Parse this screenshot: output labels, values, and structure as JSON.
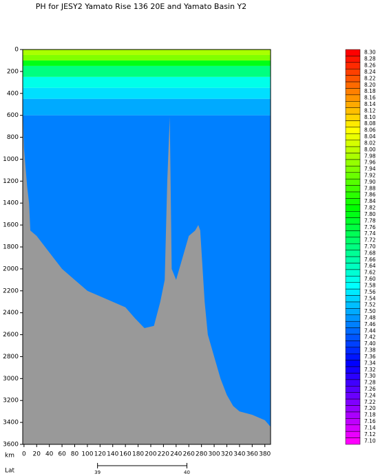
{
  "chart_data": {
    "type": "section",
    "title": "PH for JESY2 Yamato Rise 136 20E and Yamato Basin Y2",
    "x_label": "km",
    "xlim": [
      -2,
      389
    ],
    "xticks": [
      0,
      20,
      40,
      60,
      80,
      100,
      120,
      140,
      160,
      180,
      200,
      220,
      240,
      260,
      280,
      300,
      320,
      340,
      360,
      380
    ],
    "ylim": [
      0,
      3600
    ],
    "yticks": [
      0,
      200,
      400,
      600,
      800,
      1000,
      1200,
      1400,
      1600,
      1800,
      2000,
      2200,
      2400,
      2600,
      2800,
      3000,
      3200,
      3400,
      3600
    ],
    "lat_axis": {
      "label": "Lat",
      "ticks": [
        39,
        40
      ],
      "tick_km": [
        116,
        257
      ]
    },
    "profile": {
      "depths": [
        0,
        50,
        100,
        150,
        250,
        350,
        450,
        600,
        3600
      ],
      "values": [
        7.98,
        7.94,
        7.8,
        7.7,
        7.6,
        7.55,
        7.5,
        7.46
      ]
    },
    "bottom": {
      "x": [
        -2,
        0,
        5,
        8,
        10,
        20,
        40,
        60,
        80,
        100,
        120,
        140,
        160,
        175,
        190,
        205,
        215,
        222,
        226,
        230,
        233,
        240,
        250,
        260,
        270,
        275,
        278,
        285,
        290,
        300,
        310,
        320,
        330,
        340,
        360,
        380,
        389
      ],
      "depths": [
        500,
        900,
        1250,
        1400,
        1650,
        1700,
        1850,
        2000,
        2100,
        2200,
        2250,
        2300,
        2350,
        2450,
        2540,
        2520,
        2300,
        2100,
        1200,
        615,
        2000,
        2100,
        1900,
        1700,
        1650,
        1600,
        1650,
        2300,
        2600,
        2800,
        3000,
        3150,
        3250,
        3300,
        3330,
        3380,
        3440
      ],
      "color": "#999999"
    },
    "colorbar": {
      "ticks": [
        {
          "value": 8.3,
          "label": "8.30"
        },
        {
          "value": 8.28,
          "label": "8.28"
        },
        {
          "value": 8.26,
          "label": "8.26"
        },
        {
          "value": 8.24,
          "label": "8.24"
        },
        {
          "value": 8.22,
          "label": "8.22"
        },
        {
          "value": 8.2,
          "label": "8.20"
        },
        {
          "value": 8.18,
          "label": "8.18"
        },
        {
          "value": 8.16,
          "label": "8.16"
        },
        {
          "value": 8.14,
          "label": "8.14"
        },
        {
          "value": 8.12,
          "label": "8.12"
        },
        {
          "value": 8.1,
          "label": "8.10"
        },
        {
          "value": 8.08,
          "label": "8.08"
        },
        {
          "value": 8.06,
          "label": "8.06"
        },
        {
          "value": 8.04,
          "label": "8.04"
        },
        {
          "value": 8.02,
          "label": "8.02"
        },
        {
          "value": 8.0,
          "label": "8.00"
        },
        {
          "value": 7.98,
          "label": "7.98"
        },
        {
          "value": 7.96,
          "label": "7.96"
        },
        {
          "value": 7.94,
          "label": "7.94"
        },
        {
          "value": 7.92,
          "label": "7.92"
        },
        {
          "value": 7.9,
          "label": "7.90"
        },
        {
          "value": 7.88,
          "label": "7.88"
        },
        {
          "value": 7.86,
          "label": "7.86"
        },
        {
          "value": 7.84,
          "label": "7.84"
        },
        {
          "value": 7.82,
          "label": "7.82"
        },
        {
          "value": 7.8,
          "label": "7.80"
        },
        {
          "value": 7.78,
          "label": "7.78"
        },
        {
          "value": 7.76,
          "label": "7.76"
        },
        {
          "value": 7.74,
          "label": "7.74"
        },
        {
          "value": 7.72,
          "label": "7.72"
        },
        {
          "value": 7.7,
          "label": "7.70"
        },
        {
          "value": 7.68,
          "label": "7.68"
        },
        {
          "value": 7.66,
          "label": "7.66"
        },
        {
          "value": 7.64,
          "label": "7.64"
        },
        {
          "value": 7.62,
          "label": "7.62"
        },
        {
          "value": 7.6,
          "label": "7.60"
        },
        {
          "value": 7.58,
          "label": "7.58"
        },
        {
          "value": 7.56,
          "label": "7.56"
        },
        {
          "value": 7.54,
          "label": "7.54"
        },
        {
          "value": 7.52,
          "label": "7.52"
        },
        {
          "value": 7.5,
          "label": "7.50"
        },
        {
          "value": 7.48,
          "label": "7.48"
        },
        {
          "value": 7.46,
          "label": "7.46"
        },
        {
          "value": 7.44,
          "label": "7.44"
        },
        {
          "value": 7.42,
          "label": "7.42"
        },
        {
          "value": 7.4,
          "label": "7.40"
        },
        {
          "value": 7.38,
          "label": "7.38"
        },
        {
          "value": 7.36,
          "label": "7.36"
        },
        {
          "value": 7.34,
          "label": "7.34"
        },
        {
          "value": 7.32,
          "label": "7.32"
        },
        {
          "value": 7.3,
          "label": "7.30"
        },
        {
          "value": 7.28,
          "label": "7.28"
        },
        {
          "value": 7.26,
          "label": "7.26"
        },
        {
          "value": 7.24,
          "label": "7.24"
        },
        {
          "value": 7.22,
          "label": "7.22"
        },
        {
          "value": 7.2,
          "label": "7.20"
        },
        {
          "value": 7.18,
          "label": "7.18"
        },
        {
          "value": 7.16,
          "label": "7.16"
        },
        {
          "value": 7.14,
          "label": "7.14"
        },
        {
          "value": 7.12,
          "label": "7.12"
        },
        {
          "value": 7.1,
          "label": "7.10"
        }
      ]
    }
  }
}
